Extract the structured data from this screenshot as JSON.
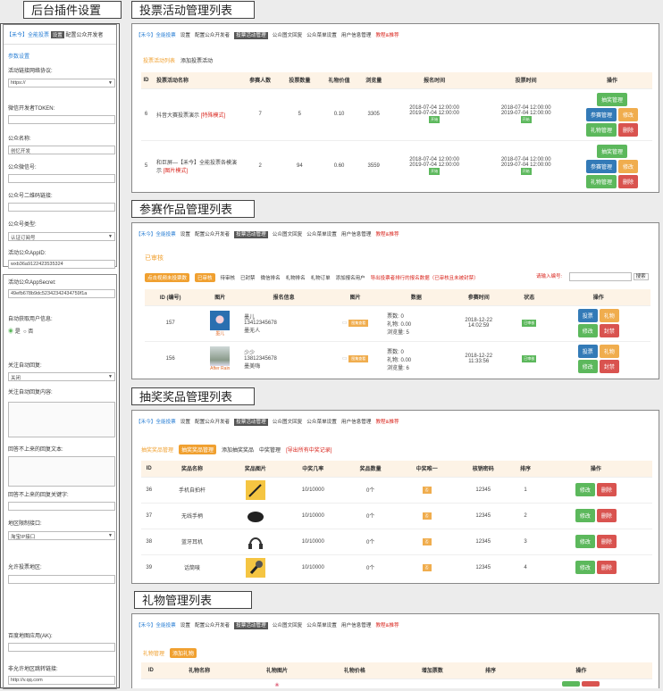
{
  "titles": {
    "t1": "后台插件设置",
    "t2": "投票活动管理列表",
    "t3": "参赛作品管理列表",
    "t4": "抽奖奖品管理列表",
    "t5": "礼物管理列表"
  },
  "left": {
    "brand": "【禾今】全能投票",
    "settings_btn": "设置",
    "config_tab": "配置公众开发者",
    "params": "参数设置",
    "f1_label": "活动链接网络协议:",
    "f1_value": "https://",
    "f2_label": "微信开发者TOKEN:",
    "f2_value": "",
    "f3_label": "公众名称:",
    "f3_value": "创忆开发",
    "f4_label": "公众微信号:",
    "f4_value": "",
    "f5_label": "公众号二维码链接:",
    "f5_value": "",
    "f6_label": "公众号类型:",
    "f6_value": "认证订阅号",
    "f7_label": "活动公众AppID:",
    "f7_value": "wxb36a9122423535324",
    "f8_label": "活动公众AppSecret:",
    "f8_value": "49efb678b9dc52342342434759f1a",
    "f9_label": "自动获取用户信息:",
    "f9_yes": "是",
    "f9_no": "否",
    "f10_label": "关注自动回复:",
    "f10_value": "关闭",
    "f11_label": "关注自动回复内容:",
    "f12_label": "回答不上来的回复文本:",
    "f13_label": "回答不上来的回复关键字:",
    "f14_label": "地区限制接口:",
    "f14_value": "淘宝IP接口",
    "f15_label": "允许投票地区:",
    "f16_label": "百度地图应用(AK):",
    "f17_label": "非允许地区跳转链接:",
    "f17_value": "http://v.qq.com"
  },
  "nav": {
    "brand": "【禾今】全能投票",
    "n1": "设置",
    "n2": "配置公众开发者",
    "n3": "投票活动管理",
    "n4": "公众图文回复",
    "n5": "公众菜单设置",
    "n6": "用户信息管理",
    "n7": "教程&推荐"
  },
  "p1": {
    "tab_active": "投票活动列表",
    "tab2": "添加投票活动",
    "headers": [
      "ID",
      "投票活动名称",
      "参赛人数",
      "投票数量",
      "礼物价值",
      "浏览量",
      "报名时间",
      "投票时间",
      "操作"
    ],
    "rows": [
      {
        "id": "6",
        "name": "抖音大赛投票演示",
        "tag": "[特殊模式]",
        "players": "7",
        "votes": "5",
        "gift": "0.10",
        "views": "3305",
        "s1": "2018-07-04 12:00:00",
        "s2": "2019-07-04 12:00:00",
        "v1": "2018-07-04 12:00:00",
        "v2": "2019-07-04 12:00:00",
        "status": "开始"
      },
      {
        "id": "5",
        "name": "和巨屏—【禾今】全能投票各模演示",
        "tag": "[图片模式]",
        "players": "2",
        "votes": "94",
        "gift": "0.60",
        "views": "3559",
        "s1": "2018-07-04 12:00:00",
        "s2": "2019-07-04 12:00:00",
        "v1": "2018-07-04 12:00:00",
        "v2": "2019-07-04 12:00:00",
        "status": "开始"
      }
    ],
    "btn_lottery": "抽奖管理",
    "btn_players": "参赛管理",
    "btn_edit": "修改",
    "btn_gift": "礼物管理",
    "btn_del": "删除"
  },
  "p2": {
    "title": "已审核",
    "tabs": [
      "点击视频未投票数",
      "已审核",
      "待审核",
      "已封禁",
      "微信排名",
      "礼物排名",
      "礼物订单",
      "添加报名用户"
    ],
    "export": "导出投票者排行的报名数据（已审核且未被封禁）",
    "search_label": "请输入编号:",
    "search_btn": "搜索",
    "headers": [
      "ID (编号)",
      "图片",
      "报名信息",
      "图片",
      "数据",
      "参赛时间",
      "状态",
      "操作"
    ],
    "rows": [
      {
        "id": "157",
        "name": "墨儿",
        "phone": "13412345678",
        "who": "墨无人",
        "caption": "墨儿",
        "d1": "票数: 0",
        "d2": "礼物: 0.00",
        "d3": "浏览量: 5",
        "t1": "2018-12-22",
        "t2": "14:02:59",
        "status": "已审核"
      },
      {
        "id": "156",
        "name": "少少",
        "phone": "13812345678",
        "who": "墨美嗨",
        "caption": "After Rain",
        "d1": "票数: 0",
        "d2": "礼物: 0.00",
        "d3": "浏览量: 6",
        "t1": "2018-12-22",
        "t2": "11:33:56",
        "status": "已审核"
      }
    ],
    "img_label": "图集查看",
    "btn_vote": "投票",
    "btn_gift": "礼物",
    "btn_edit": "修改",
    "btn_ban": "封禁"
  },
  "p3": {
    "title": "抽奖奖品管理",
    "tab1": "抽奖奖品管理",
    "tab2": "添加抽奖奖品",
    "tab3": "中奖管理",
    "export": "[导出所有中奖记录]",
    "headers": [
      "ID",
      "奖品名称",
      "奖品图片",
      "中奖几率",
      "奖品数量",
      "中奖唯一",
      "核销密码",
      "排序",
      "操作"
    ],
    "rows": [
      {
        "id": "36",
        "name": "手机自拍杆",
        "rate": "10/10000",
        "count": "0个",
        "unique": "否",
        "pwd": "12345",
        "order": "1",
        "icon": "selfie-stick"
      },
      {
        "id": "37",
        "name": "无线手柄",
        "rate": "10/10000",
        "count": "0个",
        "unique": "否",
        "pwd": "12345",
        "order": "2",
        "icon": "gamepad"
      },
      {
        "id": "38",
        "name": "蓝牙耳机",
        "rate": "10/10000",
        "count": "0个",
        "unique": "否",
        "pwd": "12345",
        "order": "3",
        "icon": "headphones"
      },
      {
        "id": "39",
        "name": "话筒唛",
        "rate": "10/10000",
        "count": "0个",
        "unique": "否",
        "pwd": "12345",
        "order": "4",
        "icon": "microphone"
      }
    ],
    "btn_edit": "修改",
    "btn_del": "删除"
  },
  "p4": {
    "title": "礼物管理",
    "add_btn": "添加礼物",
    "headers": [
      "ID",
      "礼物名称",
      "礼物图片",
      "礼物价格",
      "增加票数",
      "排序",
      "操作"
    ]
  }
}
